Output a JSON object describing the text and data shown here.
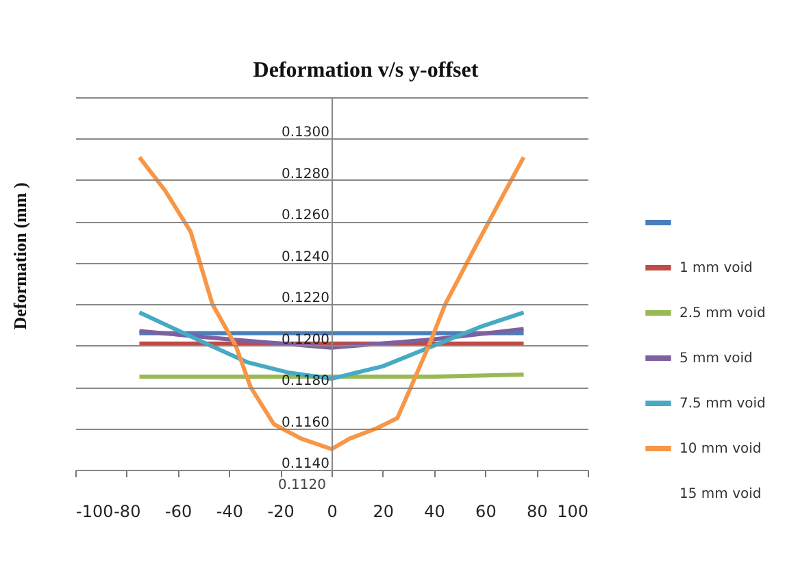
{
  "chart_data": {
    "type": "line",
    "title": "Deformation v/s y-offset",
    "ylabel": "Deformation (mm )",
    "xlim": [
      -100,
      100
    ],
    "xticks": [
      -100,
      -80,
      -60,
      -40,
      -20,
      0,
      20,
      40,
      60,
      80,
      100
    ],
    "ylim": [
      0.114,
      0.132
    ],
    "yticks": [
      {
        "value": 0.114,
        "label": "0.1140"
      },
      {
        "value": 0.116,
        "label": "0.1160"
      },
      {
        "value": 0.118,
        "label": "0.1180"
      },
      {
        "value": 0.12,
        "label": "0.1200"
      },
      {
        "value": 0.122,
        "label": "0.1220"
      },
      {
        "value": 0.124,
        "label": "0.1240"
      },
      {
        "value": 0.126,
        "label": "0.1260"
      },
      {
        "value": 0.128,
        "label": "0.1280"
      },
      {
        "value": 0.13,
        "label": "0.1300"
      },
      {
        "value": 0.132,
        "label": null
      }
    ],
    "grid": "y",
    "legend": "right",
    "marker": "none",
    "line_style": "solid",
    "annotations": [
      "0.1120",
      "15 mm void"
    ],
    "series": [
      {
        "color": "#4a7ebb",
        "x": [
          -75,
          0,
          75
        ],
        "values": [
          0.1206,
          0.1206,
          0.1206
        ]
      },
      {
        "name": "1 mm void",
        "color": "#be4b48",
        "x": [
          -75,
          0,
          75
        ],
        "values": [
          0.1201,
          0.1201,
          0.1201
        ]
      },
      {
        "name": "2.5 mm void",
        "color": "#98b954",
        "x": [
          -75,
          -40,
          0,
          40,
          75
        ],
        "values": [
          0.1185,
          0.1185,
          0.1185,
          0.1185,
          0.1186
        ]
      },
      {
        "name": "5 mm void",
        "color": "#7d60a0",
        "x": [
          -75,
          -40,
          0,
          40,
          75
        ],
        "values": [
          0.1207,
          0.1203,
          0.1199,
          0.1203,
          0.1208
        ]
      },
      {
        "name": "7.5 mm void",
        "color": "#46aac5",
        "x": [
          -75,
          -49,
          -33,
          -17,
          0,
          20,
          42,
          58,
          75
        ],
        "values": [
          0.1216,
          0.1201,
          0.1192,
          0.1187,
          0.1184,
          0.119,
          0.1201,
          0.1209,
          0.1216
        ]
      },
      {
        "name": "10 mm void",
        "color": "#f79646",
        "x": [
          -75,
          -65,
          -55,
          -46.5,
          -37.4,
          -31.6,
          -22.5,
          -11.8,
          0,
          7,
          17.6,
          25.7,
          31,
          38,
          44.4,
          55,
          65.8,
          75
        ],
        "values": [
          0.1291,
          0.1275,
          0.1255,
          0.122,
          0.12,
          0.118,
          0.1162,
          0.1155,
          0.115,
          0.1155,
          0.116,
          0.1165,
          0.118,
          0.12,
          0.122,
          0.1245,
          0.127,
          0.1291
        ]
      }
    ]
  }
}
